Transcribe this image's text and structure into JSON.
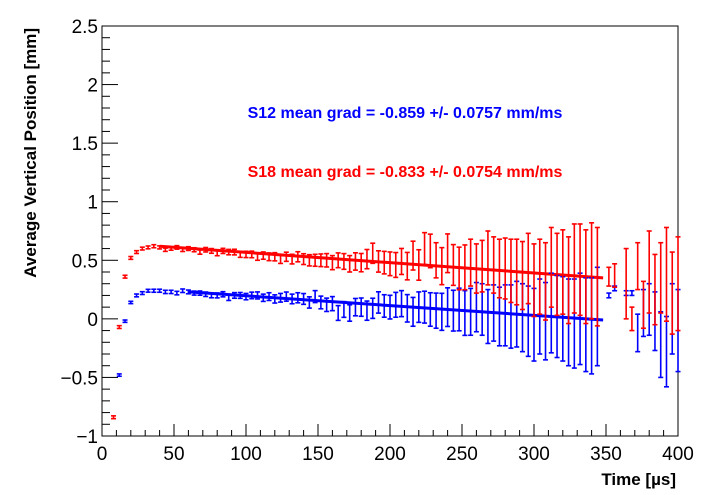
{
  "chart_data": {
    "type": "scatter",
    "title": "",
    "xlabel": "Time [µs]",
    "ylabel": "Average Vertical Position [mm]",
    "xlim": [
      0,
      400
    ],
    "ylim": [
      -1,
      2.5
    ],
    "xticks": [
      "0",
      "50",
      "100",
      "150",
      "200",
      "250",
      "300",
      "350",
      "400"
    ],
    "yticks": [
      "−1",
      "−0.5",
      "0",
      "0.5",
      "1",
      "1.5",
      "2",
      "2.5"
    ],
    "grid": false,
    "annotations": [
      {
        "text": "S12 mean grad = -0.859 +/- 0.0757 mm/ms",
        "color": "#0000ff"
      },
      {
        "text": "S18 mean grad = -0.833 +/- 0.0754 mm/ms",
        "color": "#ff0000"
      }
    ],
    "series": [
      {
        "color": "#0000ff",
        "fit": {
          "x": [
            60,
            348
          ],
          "y": [
            0.23,
            -0.01
          ]
        },
        "points": [
          [
            12,
            -0.48,
            0.01
          ],
          [
            16,
            -0.02,
            0.01
          ],
          [
            20,
            0.14,
            0.01
          ],
          [
            24,
            0.2,
            0.012
          ],
          [
            28,
            0.22,
            0.012
          ],
          [
            32,
            0.24,
            0.012
          ],
          [
            36,
            0.24,
            0.013
          ],
          [
            40,
            0.24,
            0.013
          ],
          [
            44,
            0.23,
            0.014
          ],
          [
            48,
            0.23,
            0.014
          ],
          [
            52,
            0.22,
            0.015
          ],
          [
            56,
            0.24,
            0.015
          ],
          [
            60,
            0.23,
            0.016
          ],
          [
            64,
            0.22,
            0.017
          ],
          [
            68,
            0.22,
            0.018
          ],
          [
            72,
            0.21,
            0.019
          ],
          [
            76,
            0.2,
            0.02
          ],
          [
            80,
            0.2,
            0.021
          ],
          [
            84,
            0.21,
            0.022
          ],
          [
            88,
            0.18,
            0.023
          ],
          [
            92,
            0.2,
            0.024
          ],
          [
            96,
            0.2,
            0.025
          ],
          [
            100,
            0.19,
            0.027
          ],
          [
            104,
            0.2,
            0.028
          ],
          [
            108,
            0.2,
            0.03
          ],
          [
            112,
            0.18,
            0.031
          ],
          [
            116,
            0.19,
            0.033
          ],
          [
            120,
            0.17,
            0.035
          ],
          [
            124,
            0.18,
            0.037
          ],
          [
            128,
            0.19,
            0.039
          ],
          [
            132,
            0.17,
            0.041
          ],
          [
            136,
            0.18,
            0.043
          ],
          [
            140,
            0.17,
            0.046
          ],
          [
            144,
            0.14,
            0.048
          ],
          [
            148,
            0.19,
            0.051
          ],
          [
            152,
            0.14,
            0.054
          ],
          [
            156,
            0.12,
            0.057
          ],
          [
            160,
            0.13,
            0.06
          ],
          [
            164,
            0.05,
            0.063
          ],
          [
            168,
            0.08,
            0.067
          ],
          [
            172,
            0.05,
            0.07
          ],
          [
            176,
            0.1,
            0.074
          ],
          [
            180,
            0.1,
            0.078
          ],
          [
            184,
            0.07,
            0.082
          ],
          [
            188,
            0.09,
            0.086
          ],
          [
            192,
            0.14,
            0.091
          ],
          [
            196,
            0.11,
            0.096
          ],
          [
            200,
            0.1,
            0.101
          ],
          [
            204,
            0.12,
            0.106
          ],
          [
            208,
            0.13,
            0.111
          ],
          [
            212,
            0.09,
            0.117
          ],
          [
            216,
            0.06,
            0.123
          ],
          [
            220,
            0.1,
            0.13
          ],
          [
            224,
            0.1,
            0.136
          ],
          [
            228,
            0.08,
            0.143
          ],
          [
            232,
            0.07,
            0.15
          ],
          [
            236,
            0.06,
            0.158
          ],
          [
            240,
            0.1,
            0.165
          ],
          [
            244,
            0.07,
            0.174
          ],
          [
            248,
            0.08,
            0.182
          ],
          [
            252,
            0.05,
            0.191
          ],
          [
            256,
            0.06,
            0.2
          ],
          [
            260,
            0.1,
            0.21
          ],
          [
            264,
            0.08,
            0.22
          ],
          [
            268,
            0.02,
            0.23
          ],
          [
            272,
            0.05,
            0.24
          ],
          [
            276,
            0.02,
            0.25
          ],
          [
            280,
            0.03,
            0.26
          ],
          [
            284,
            0.02,
            0.27
          ],
          [
            288,
            0.04,
            0.28
          ],
          [
            292,
            0.01,
            0.29
          ],
          [
            296,
            -0.02,
            0.3
          ],
          [
            300,
            -0.05,
            0.31
          ],
          [
            304,
            0.02,
            0.32
          ],
          [
            308,
            -0.02,
            0.33
          ],
          [
            312,
            0.05,
            0.34
          ],
          [
            316,
            0.02,
            0.35
          ],
          [
            320,
            0.0,
            0.36
          ],
          [
            324,
            -0.03,
            0.37
          ],
          [
            328,
            -0.04,
            0.38
          ],
          [
            332,
            0.0,
            0.39
          ],
          [
            336,
            -0.05,
            0.4
          ],
          [
            340,
            -0.06,
            0.41
          ],
          [
            344,
            0.02,
            0.42
          ],
          [
            352,
            0.2,
            0.02
          ],
          [
            356,
            0.26,
            0.02
          ],
          [
            364,
            0.22,
            0.02
          ],
          [
            368,
            0.22,
            0.02
          ],
          [
            372,
            -0.12,
            0.16
          ],
          [
            376,
            0.05,
            0.2
          ],
          [
            380,
            0.08,
            0.22
          ],
          [
            384,
            -0.02,
            0.25
          ],
          [
            388,
            -0.22,
            0.28
          ],
          [
            392,
            -0.28,
            0.3
          ],
          [
            396,
            0.0,
            0.3
          ],
          [
            400,
            -0.1,
            0.35
          ]
        ]
      },
      {
        "color": "#ff0000",
        "fit": {
          "x": [
            40,
            348
          ],
          "y": [
            0.62,
            0.35
          ]
        },
        "points": [
          [
            8,
            -0.84,
            0.012
          ],
          [
            12,
            -0.07,
            0.012
          ],
          [
            16,
            0.36,
            0.012
          ],
          [
            20,
            0.52,
            0.012
          ],
          [
            24,
            0.57,
            0.012
          ],
          [
            28,
            0.6,
            0.012
          ],
          [
            32,
            0.61,
            0.012
          ],
          [
            36,
            0.62,
            0.013
          ],
          [
            40,
            0.61,
            0.013
          ],
          [
            44,
            0.59,
            0.014
          ],
          [
            48,
            0.6,
            0.014
          ],
          [
            52,
            0.61,
            0.015
          ],
          [
            56,
            0.59,
            0.015
          ],
          [
            60,
            0.6,
            0.016
          ],
          [
            64,
            0.59,
            0.017
          ],
          [
            68,
            0.57,
            0.018
          ],
          [
            72,
            0.59,
            0.019
          ],
          [
            76,
            0.58,
            0.02
          ],
          [
            80,
            0.56,
            0.021
          ],
          [
            84,
            0.58,
            0.022
          ],
          [
            88,
            0.57,
            0.023
          ],
          [
            92,
            0.57,
            0.024
          ],
          [
            96,
            0.55,
            0.025
          ],
          [
            100,
            0.55,
            0.027
          ],
          [
            104,
            0.55,
            0.028
          ],
          [
            108,
            0.53,
            0.03
          ],
          [
            112,
            0.54,
            0.031
          ],
          [
            116,
            0.53,
            0.033
          ],
          [
            120,
            0.53,
            0.035
          ],
          [
            124,
            0.51,
            0.037
          ],
          [
            128,
            0.53,
            0.039
          ],
          [
            132,
            0.51,
            0.041
          ],
          [
            136,
            0.53,
            0.043
          ],
          [
            140,
            0.51,
            0.046
          ],
          [
            144,
            0.5,
            0.048
          ],
          [
            148,
            0.5,
            0.051
          ],
          [
            152,
            0.5,
            0.054
          ],
          [
            156,
            0.5,
            0.057
          ],
          [
            160,
            0.48,
            0.06
          ],
          [
            164,
            0.5,
            0.063
          ],
          [
            168,
            0.49,
            0.067
          ],
          [
            172,
            0.47,
            0.07
          ],
          [
            176,
            0.49,
            0.074
          ],
          [
            180,
            0.48,
            0.078
          ],
          [
            184,
            0.51,
            0.082
          ],
          [
            188,
            0.56,
            0.086
          ],
          [
            192,
            0.49,
            0.091
          ],
          [
            196,
            0.48,
            0.096
          ],
          [
            200,
            0.47,
            0.101
          ],
          [
            204,
            0.46,
            0.106
          ],
          [
            208,
            0.49,
            0.111
          ],
          [
            212,
            0.45,
            0.117
          ],
          [
            216,
            0.54,
            0.123
          ],
          [
            220,
            0.46,
            0.13
          ],
          [
            224,
            0.6,
            0.136
          ],
          [
            228,
            0.58,
            0.143
          ],
          [
            232,
            0.5,
            0.15
          ],
          [
            236,
            0.45,
            0.158
          ],
          [
            240,
            0.56,
            0.165
          ],
          [
            244,
            0.46,
            0.174
          ],
          [
            248,
            0.43,
            0.182
          ],
          [
            252,
            0.44,
            0.191
          ],
          [
            256,
            0.48,
            0.2
          ],
          [
            260,
            0.43,
            0.21
          ],
          [
            264,
            0.45,
            0.22
          ],
          [
            268,
            0.52,
            0.23
          ],
          [
            272,
            0.46,
            0.24
          ],
          [
            276,
            0.43,
            0.25
          ],
          [
            280,
            0.43,
            0.26
          ],
          [
            284,
            0.41,
            0.27
          ],
          [
            288,
            0.4,
            0.28
          ],
          [
            292,
            0.37,
            0.29
          ],
          [
            296,
            0.43,
            0.3
          ],
          [
            300,
            0.33,
            0.31
          ],
          [
            304,
            0.36,
            0.32
          ],
          [
            308,
            0.32,
            0.33
          ],
          [
            312,
            0.44,
            0.34
          ],
          [
            316,
            0.38,
            0.35
          ],
          [
            320,
            0.4,
            0.36
          ],
          [
            324,
            0.33,
            0.37
          ],
          [
            328,
            0.43,
            0.38
          ],
          [
            332,
            0.42,
            0.39
          ],
          [
            336,
            0.36,
            0.4
          ],
          [
            340,
            0.41,
            0.41
          ],
          [
            344,
            0.36,
            0.42
          ],
          [
            352,
            0.36,
            0.08
          ],
          [
            356,
            0.37,
            0.1
          ],
          [
            364,
            0.3,
            0.3
          ],
          [
            368,
            0.0,
            0.1
          ],
          [
            372,
            0.45,
            0.2
          ],
          [
            376,
            0.12,
            0.2
          ],
          [
            380,
            0.4,
            0.35
          ],
          [
            384,
            0.25,
            0.3
          ],
          [
            388,
            0.35,
            0.3
          ],
          [
            392,
            0.38,
            0.4
          ],
          [
            396,
            0.22,
            0.35
          ],
          [
            400,
            0.3,
            0.4
          ]
        ]
      }
    ]
  }
}
